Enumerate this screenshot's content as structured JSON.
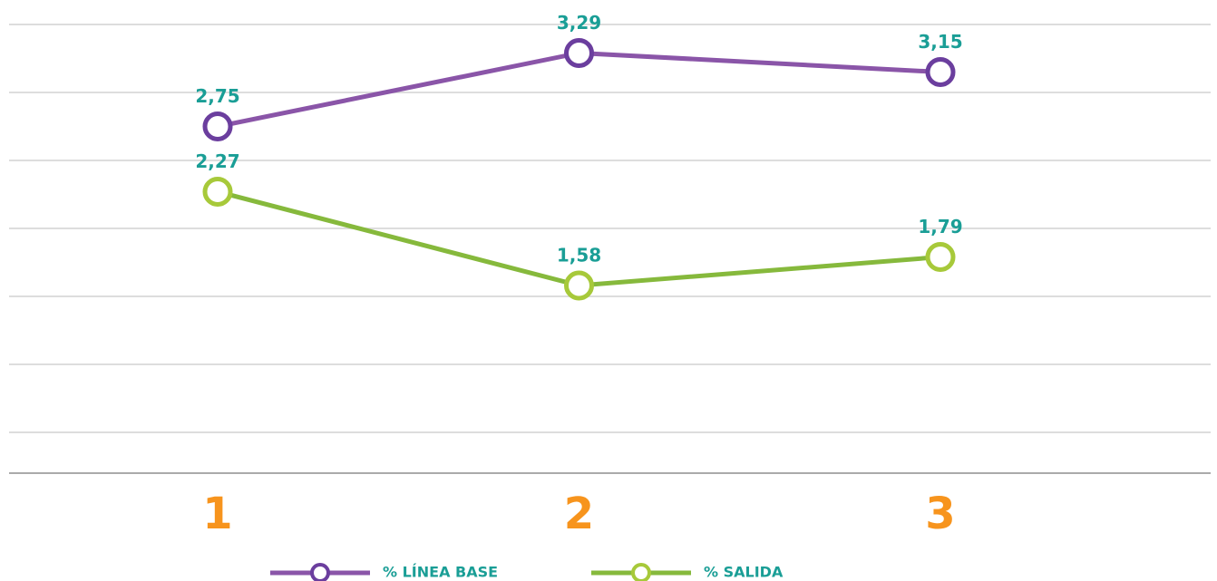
{
  "chart_data": {
    "type": "line",
    "categories": [
      "1",
      "2",
      "3"
    ],
    "series": [
      {
        "name": "% LÍNEA BASE",
        "color": "#8a55a8",
        "marker_color": "#6b3e9e",
        "values": [
          2.75,
          3.29,
          3.15
        ],
        "value_labels": [
          "2,75",
          "3,29",
          "3,15"
        ]
      },
      {
        "name": "% SALIDA",
        "color": "#86b93c",
        "marker_color": "#a7c93a",
        "values": [
          2.27,
          1.58,
          1.79
        ],
        "value_labels": [
          "2,27",
          "1,58",
          "1,79"
        ]
      }
    ],
    "ylim": [
      0.2,
      3.5
    ],
    "yticks": [
      0.5,
      1,
      1.5,
      2,
      2.5,
      3,
      3.5
    ],
    "grid": true,
    "legend": "bottom"
  }
}
